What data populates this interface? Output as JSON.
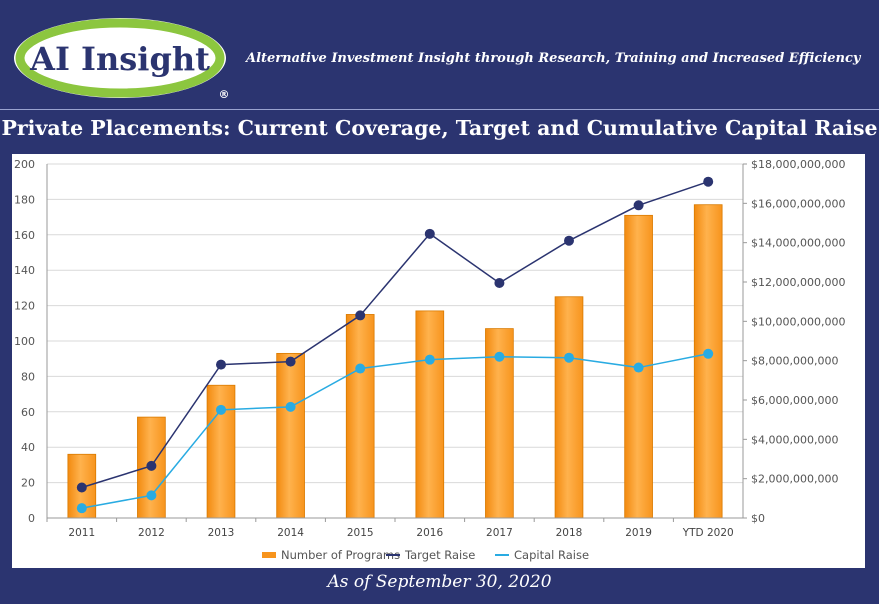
{
  "header": {
    "logo_text": "AI Insight",
    "registered_mark": "®",
    "tagline": "Alternative Investment Insight through Research, Training and Increased Efficiency"
  },
  "footer": {
    "as_of": "As of  September 30, 2020"
  },
  "colors": {
    "background": "#2b3470",
    "bar": "#f7941d",
    "target_line": "#2b3470",
    "capital_line": "#29abe2",
    "logo_green": "#8cc63f"
  },
  "chart_data": {
    "type": "bar",
    "title": "Private Placements: Current Coverage, Target and Cumulative Capital Raise",
    "categories": [
      "2011",
      "2012",
      "2013",
      "2014",
      "2015",
      "2016",
      "2017",
      "2018",
      "2019",
      "YTD 2020"
    ],
    "left_axis": {
      "ylim": [
        0,
        200
      ],
      "ticks": [
        "0",
        "20",
        "40",
        "60",
        "80",
        "100",
        "120",
        "140",
        "160",
        "180",
        "200"
      ]
    },
    "right_axis": {
      "ylim": [
        0,
        18000000000
      ],
      "ticks": [
        "$0",
        "$2,000,000,000",
        "$4,000,000,000",
        "$6,000,000,000",
        "$8,000,000,000",
        "$10,000,000,000",
        "$12,000,000,000",
        "$14,000,000,000",
        "$16,000,000,000",
        "$18,000,000,000"
      ]
    },
    "series": [
      {
        "name": "Number of Programs",
        "type": "bar",
        "axis": "left",
        "values": [
          36,
          57,
          75,
          93,
          115,
          117,
          107,
          125,
          171,
          177
        ]
      },
      {
        "name": "Target Raise",
        "type": "line",
        "axis": "right",
        "values": [
          1550000000,
          2650000000,
          7800000000,
          7950000000,
          10300000000,
          14450000000,
          11950000000,
          14100000000,
          15900000000,
          17100000000
        ]
      },
      {
        "name": "Capital Raise",
        "type": "line",
        "axis": "right",
        "values": [
          500000000,
          1150000000,
          5500000000,
          5650000000,
          7600000000,
          8050000000,
          8200000000,
          8150000000,
          7650000000,
          8350000000
        ]
      }
    ],
    "grid": true,
    "legend_position": "bottom"
  }
}
